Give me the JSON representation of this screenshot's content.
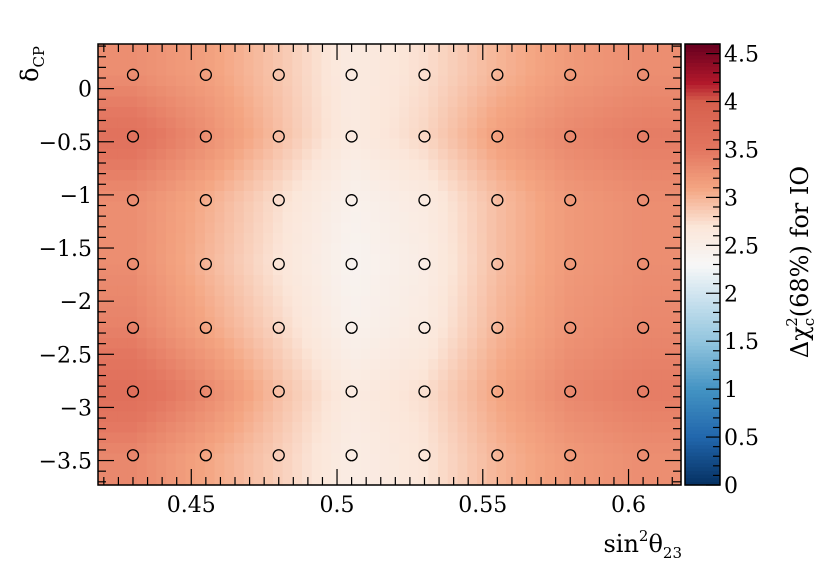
{
  "chart_data": {
    "type": "heatmap",
    "xlabel": "sin²θ₂₃",
    "xlabel_base": "sin",
    "xlabel_sup": "2",
    "xlabel_main": "θ",
    "xlabel_sub": "23",
    "ylabel": "δCP",
    "ylabel_main": "δ",
    "ylabel_sub": "CP",
    "zlabel": "Δχc²(68%) for IO",
    "zlabel_delta": "Δχ",
    "zlabel_sub": "c",
    "zlabel_sup": "2",
    "zlabel_rest": "(68%) for IO",
    "xlim": [
      0.418,
      0.618
    ],
    "ylim": [
      -3.73,
      0.42
    ],
    "zlim": [
      0,
      4.6
    ],
    "x_ticks": [
      0.45,
      0.5,
      0.55,
      0.6
    ],
    "x_tick_labels": [
      "0.45",
      "0.5",
      "0.55",
      "0.6"
    ],
    "y_ticks": [
      0,
      -0.5,
      -1,
      -1.5,
      -2,
      -2.5,
      -3,
      -3.5
    ],
    "y_tick_labels": [
      "0",
      "−0.5",
      "−1",
      "−1.5",
      "−2",
      "−2.5",
      "−3",
      "−3.5"
    ],
    "z_ticks": [
      0,
      0.5,
      1,
      1.5,
      2,
      2.5,
      3,
      3.5,
      4,
      4.5
    ],
    "z_tick_labels": [
      "0",
      "0.5",
      "1",
      "1.5",
      "2",
      "2.5",
      "3",
      "3.5",
      "4",
      "4.5"
    ],
    "grid_x": [
      0.43,
      0.455,
      0.48,
      0.505,
      0.53,
      0.555,
      0.58,
      0.605
    ],
    "grid_y": [
      0.13,
      -0.45,
      -1.05,
      -1.65,
      -2.25,
      -2.85,
      -3.45
    ],
    "z_values": [
      [
        3.3,
        3.15,
        2.9,
        2.6,
        2.75,
        3.0,
        3.2,
        3.3
      ],
      [
        3.6,
        3.3,
        2.95,
        2.6,
        2.8,
        3.15,
        3.35,
        3.45
      ],
      [
        3.3,
        3.05,
        2.75,
        2.45,
        2.6,
        2.95,
        3.2,
        3.3
      ],
      [
        3.3,
        3.0,
        2.7,
        2.4,
        2.55,
        2.95,
        3.2,
        3.3
      ],
      [
        3.4,
        3.1,
        2.8,
        2.45,
        2.6,
        3.0,
        3.25,
        3.35
      ],
      [
        3.65,
        3.35,
        2.95,
        2.6,
        2.75,
        3.1,
        3.35,
        3.45
      ],
      [
        3.35,
        3.1,
        2.85,
        2.55,
        2.7,
        3.0,
        3.2,
        3.3
      ]
    ],
    "markers": "open circles at grid points",
    "colorscale": [
      {
        "v": 0.0,
        "c": "#053061"
      },
      {
        "v": 0.5,
        "c": "#2166ac"
      },
      {
        "v": 1.0,
        "c": "#4393c3"
      },
      {
        "v": 1.5,
        "c": "#92c5de"
      },
      {
        "v": 2.0,
        "c": "#d1e5f0"
      },
      {
        "v": 2.3,
        "c": "#f7f7f7"
      },
      {
        "v": 2.7,
        "c": "#fbe6d9"
      },
      {
        "v": 3.1,
        "c": "#f4a582"
      },
      {
        "v": 3.5,
        "c": "#e37660"
      },
      {
        "v": 4.0,
        "c": "#d6604d"
      },
      {
        "v": 4.2,
        "c": "#b2182b"
      },
      {
        "v": 4.6,
        "c": "#67001f"
      }
    ]
  }
}
